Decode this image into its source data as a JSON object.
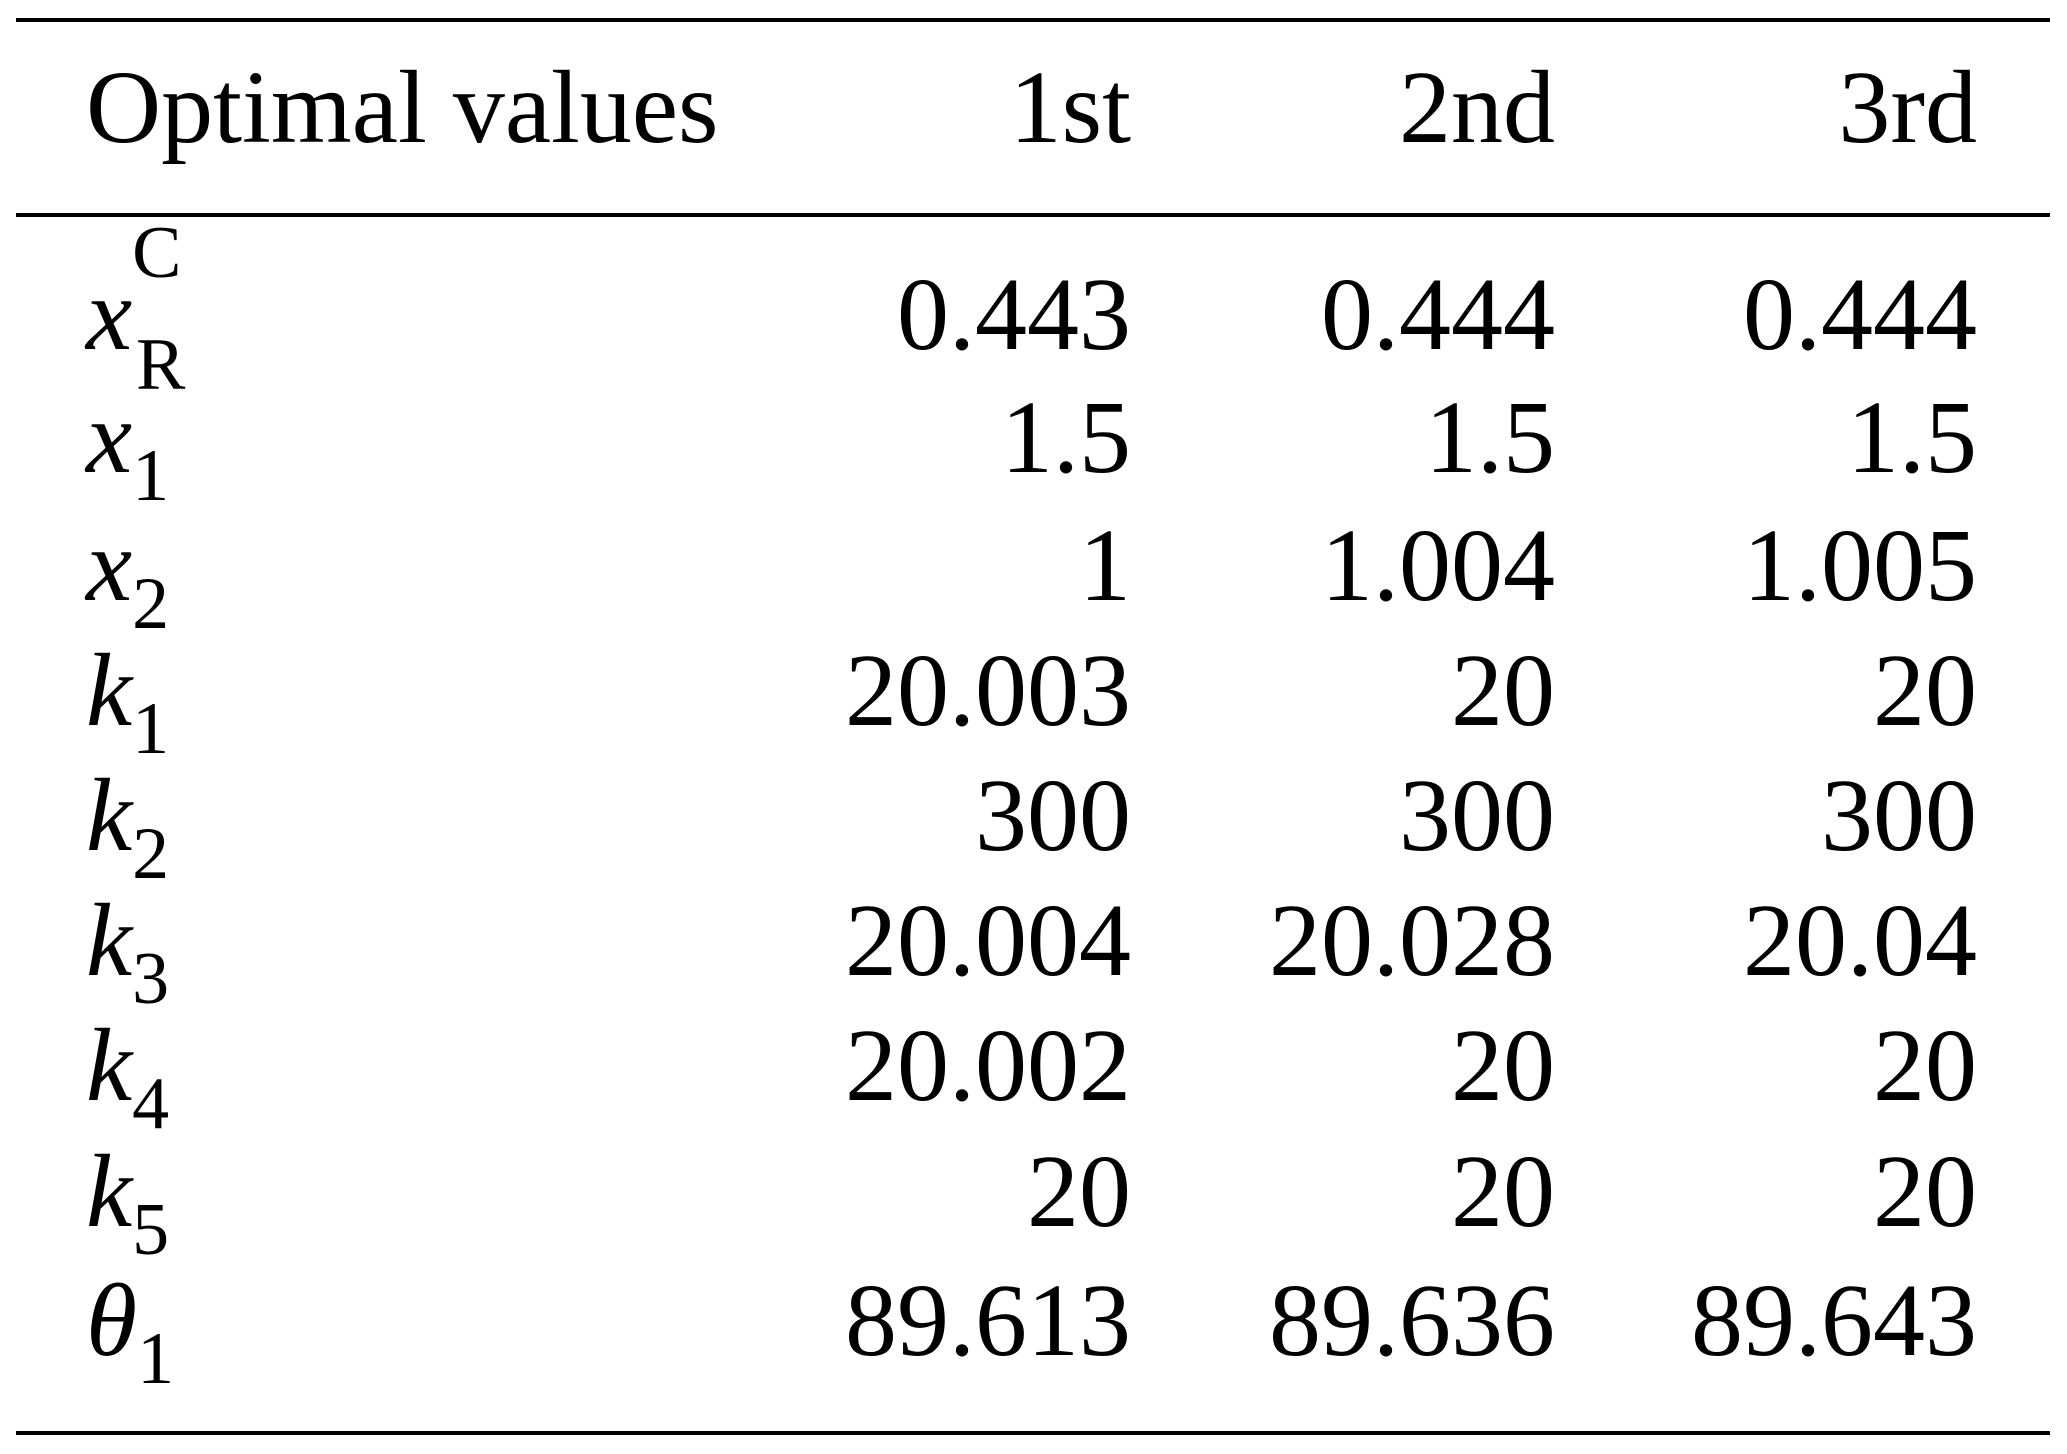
{
  "table": {
    "header": [
      "Optimal values",
      "1st",
      "2nd",
      "3rd"
    ],
    "rows": [
      {
        "label": {
          "base": "x",
          "sub": "R",
          "sup": "C"
        },
        "cells": [
          "0.443",
          "0.444",
          "0.444"
        ]
      },
      {
        "label": {
          "base": "x",
          "sub": "1"
        },
        "cells": [
          "1.5",
          "1.5",
          "1.5"
        ]
      },
      {
        "label": {
          "base": "x",
          "sub": "2"
        },
        "cells": [
          "1",
          "1.004",
          "1.005"
        ]
      },
      {
        "label": {
          "base": "k",
          "sub": "1"
        },
        "cells": [
          "20.003",
          "20",
          "20"
        ]
      },
      {
        "label": {
          "base": "k",
          "sub": "2"
        },
        "cells": [
          "300",
          "300",
          "300"
        ]
      },
      {
        "label": {
          "base": "k",
          "sub": "3"
        },
        "cells": [
          "20.004",
          "20.028",
          "20.04"
        ]
      },
      {
        "label": {
          "base": "k",
          "sub": "4"
        },
        "cells": [
          "20.002",
          "20",
          "20"
        ]
      },
      {
        "label": {
          "base": "k",
          "sub": "5"
        },
        "cells": [
          "20",
          "20",
          "20"
        ]
      },
      {
        "label": {
          "base": "θ",
          "sub": "1"
        },
        "cells": [
          "89.613",
          "89.636",
          "89.643"
        ]
      }
    ]
  }
}
